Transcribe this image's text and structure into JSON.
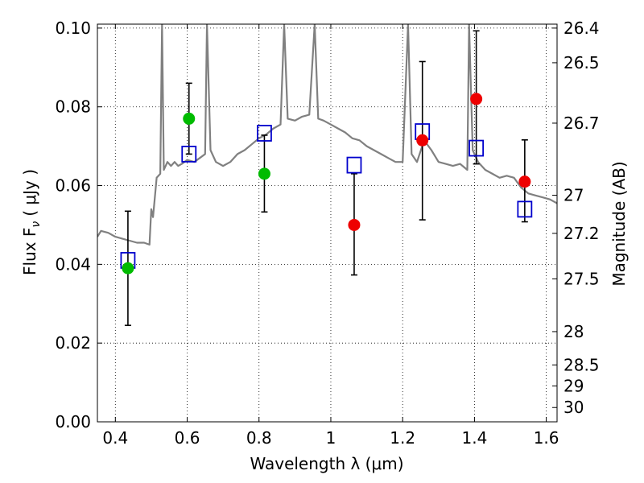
{
  "chart_data": {
    "type": "scatter",
    "xlabel": "Wavelength  λ (μm)",
    "ylabel": "Flux  F",
    "ylabel_sub": "ν",
    "ylabel_unit": "( μJy )",
    "y2label": "Magnitude (AB)",
    "xlim": [
      0.35,
      1.63
    ],
    "ylim": [
      0.0,
      0.101
    ],
    "grid": true,
    "x_ticks": [
      0.4,
      0.6,
      0.8,
      1.0,
      1.2,
      1.4,
      1.6
    ],
    "x_tick_labels": [
      "0.4",
      "0.6",
      "0.8",
      "1",
      "1.2",
      "1.4",
      "1.6"
    ],
    "y_ticks": [
      0.0,
      0.02,
      0.04,
      0.06,
      0.08,
      0.1
    ],
    "y_tick_labels": [
      "0.00",
      "0.02",
      "0.04",
      "0.06",
      "0.08",
      "0.10"
    ],
    "y2_ticks": [
      {
        "label": "26.4",
        "value": 26.4
      },
      {
        "label": "26.5",
        "value": 26.5
      },
      {
        "label": "26.7",
        "value": 26.7
      },
      {
        "label": "27",
        "value": 27.0
      },
      {
        "label": "27.2",
        "value": 27.2
      },
      {
        "label": "27.5",
        "value": 27.5
      },
      {
        "label": "28",
        "value": 28.0
      },
      {
        "label": "28.5",
        "value": 28.5
      },
      {
        "label": "29",
        "value": 29.0
      },
      {
        "label": "30",
        "value": 30.0
      }
    ],
    "colors": {
      "model": "#808080",
      "green_points": "#00bb00",
      "red_points": "#ee0000",
      "model_photometry": "#0000cc",
      "errorbar": "#000000"
    },
    "model_spectrum": [
      [
        0.35,
        0.047
      ],
      [
        0.36,
        0.0485
      ],
      [
        0.38,
        0.048
      ],
      [
        0.4,
        0.047
      ],
      [
        0.42,
        0.0465
      ],
      [
        0.44,
        0.046
      ],
      [
        0.46,
        0.0455
      ],
      [
        0.48,
        0.0455
      ],
      [
        0.495,
        0.045
      ],
      [
        0.5,
        0.054
      ],
      [
        0.505,
        0.052
      ],
      [
        0.515,
        0.062
      ],
      [
        0.525,
        0.063
      ],
      [
        0.53,
        0.101
      ],
      [
        0.535,
        0.064
      ],
      [
        0.545,
        0.066
      ],
      [
        0.555,
        0.065
      ],
      [
        0.565,
        0.066
      ],
      [
        0.575,
        0.065
      ],
      [
        0.585,
        0.0655
      ],
      [
        0.6,
        0.0665
      ],
      [
        0.62,
        0.066
      ],
      [
        0.635,
        0.067
      ],
      [
        0.65,
        0.068
      ],
      [
        0.655,
        0.101
      ],
      [
        0.665,
        0.069
      ],
      [
        0.68,
        0.066
      ],
      [
        0.7,
        0.065
      ],
      [
        0.72,
        0.066
      ],
      [
        0.74,
        0.068
      ],
      [
        0.76,
        0.069
      ],
      [
        0.78,
        0.0705
      ],
      [
        0.8,
        0.072
      ],
      [
        0.82,
        0.073
      ],
      [
        0.84,
        0.0745
      ],
      [
        0.86,
        0.0755
      ],
      [
        0.87,
        0.101
      ],
      [
        0.88,
        0.077
      ],
      [
        0.9,
        0.0765
      ],
      [
        0.92,
        0.0775
      ],
      [
        0.94,
        0.078
      ],
      [
        0.955,
        0.101
      ],
      [
        0.965,
        0.077
      ],
      [
        0.98,
        0.0765
      ],
      [
        1.0,
        0.0755
      ],
      [
        1.02,
        0.0745
      ],
      [
        1.04,
        0.0735
      ],
      [
        1.06,
        0.072
      ],
      [
        1.08,
        0.0715
      ],
      [
        1.1,
        0.07
      ],
      [
        1.12,
        0.069
      ],
      [
        1.14,
        0.068
      ],
      [
        1.16,
        0.067
      ],
      [
        1.18,
        0.066
      ],
      [
        1.2,
        0.066
      ],
      [
        1.215,
        0.101
      ],
      [
        1.225,
        0.068
      ],
      [
        1.24,
        0.066
      ],
      [
        1.26,
        0.0715
      ],
      [
        1.28,
        0.069
      ],
      [
        1.3,
        0.066
      ],
      [
        1.32,
        0.0655
      ],
      [
        1.34,
        0.065
      ],
      [
        1.36,
        0.0655
      ],
      [
        1.38,
        0.064
      ],
      [
        1.385,
        0.101
      ],
      [
        1.395,
        0.069
      ],
      [
        1.41,
        0.066
      ],
      [
        1.43,
        0.064
      ],
      [
        1.45,
        0.063
      ],
      [
        1.47,
        0.062
      ],
      [
        1.49,
        0.0625
      ],
      [
        1.51,
        0.062
      ],
      [
        1.53,
        0.0595
      ],
      [
        1.55,
        0.058
      ],
      [
        1.57,
        0.0575
      ],
      [
        1.59,
        0.057
      ],
      [
        1.61,
        0.0565
      ],
      [
        1.63,
        0.0555
      ]
    ],
    "green_points": [
      {
        "x": 0.435,
        "y": 0.039,
        "err_lo": 0.0245,
        "err_hi": 0.0535
      },
      {
        "x": 0.605,
        "y": 0.077,
        "err_lo": 0.068,
        "err_hi": 0.086
      },
      {
        "x": 0.815,
        "y": 0.063,
        "err_lo": 0.0533,
        "err_hi": 0.0728
      }
    ],
    "red_points": [
      {
        "x": 1.065,
        "y": 0.05,
        "err_lo": 0.0373,
        "err_hi": 0.063
      },
      {
        "x": 1.255,
        "y": 0.0715,
        "err_lo": 0.0513,
        "err_hi": 0.0915
      },
      {
        "x": 1.405,
        "y": 0.082,
        "err_lo": 0.0655,
        "err_hi": 0.0993
      },
      {
        "x": 1.54,
        "y": 0.061,
        "err_lo": 0.0508,
        "err_hi": 0.0716
      }
    ],
    "model_photometry": [
      {
        "x": 0.435,
        "y": 0.041
      },
      {
        "x": 0.605,
        "y": 0.068
      },
      {
        "x": 0.815,
        "y": 0.0733
      },
      {
        "x": 1.065,
        "y": 0.0652
      },
      {
        "x": 1.255,
        "y": 0.0737
      },
      {
        "x": 1.405,
        "y": 0.0695
      },
      {
        "x": 1.54,
        "y": 0.054
      }
    ]
  }
}
